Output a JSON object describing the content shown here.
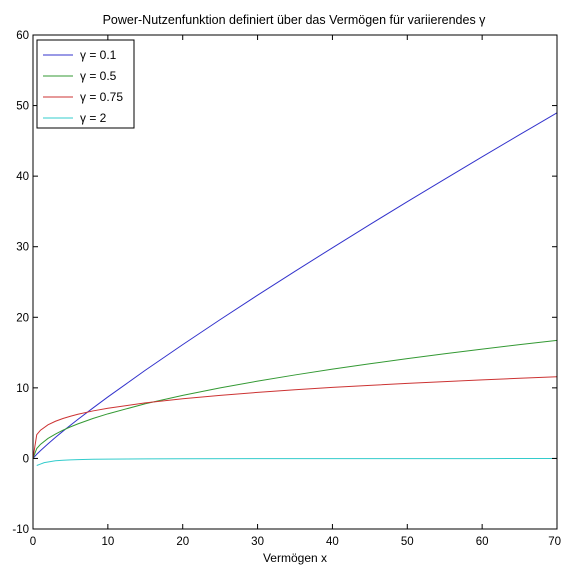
{
  "chart_data": {
    "type": "line",
    "title": "Power-Nutzenfunktion definiert über das Vermögen für variierendes γ",
    "xlabel": "Vermögen x",
    "ylabel": "",
    "xlim": [
      0,
      70
    ],
    "ylim": [
      -10,
      60
    ],
    "xticks": [
      0,
      10,
      20,
      30,
      40,
      50,
      60,
      70
    ],
    "yticks": [
      -10,
      0,
      10,
      20,
      30,
      40,
      50,
      60
    ],
    "grid": false,
    "legend_position": "top-left",
    "series": [
      {
        "name": "γ = 0.1",
        "color": "#3333cc",
        "x": [
          0,
          0.5,
          1,
          2,
          3,
          4,
          5,
          6,
          8,
          10,
          15,
          20,
          25,
          30,
          35,
          40,
          45,
          50,
          55,
          60,
          65,
          70
        ],
        "y": [
          0,
          0.59,
          1.11,
          2.07,
          2.98,
          3.86,
          4.7,
          5.53,
          7.14,
          8.71,
          12.49,
          16.13,
          19.67,
          23.13,
          26.52,
          29.85,
          33.14,
          36.38,
          39.57,
          42.74,
          45.87,
          48.97
        ]
      },
      {
        "name": "γ = 0.5",
        "color": "#339933",
        "x": [
          0,
          0.5,
          1,
          2,
          3,
          4,
          5,
          6,
          8,
          10,
          15,
          20,
          25,
          30,
          35,
          40,
          45,
          50,
          55,
          60,
          65,
          70
        ],
        "y": [
          0,
          1.41,
          2,
          2.83,
          3.46,
          4,
          4.47,
          4.9,
          5.66,
          6.32,
          7.75,
          8.94,
          10,
          10.95,
          11.83,
          12.65,
          13.42,
          14.14,
          14.83,
          15.49,
          16.12,
          16.73
        ]
      },
      {
        "name": "γ = 0.75",
        "color": "#cc3333",
        "x": [
          0,
          0.5,
          1,
          2,
          3,
          4,
          5,
          6,
          8,
          10,
          15,
          20,
          25,
          30,
          35,
          40,
          45,
          50,
          55,
          60,
          65,
          70
        ],
        "y": [
          0,
          3.36,
          4,
          4.76,
          5.27,
          5.66,
          5.98,
          6.26,
          6.73,
          7.11,
          7.87,
          8.46,
          8.94,
          9.36,
          9.73,
          10.06,
          10.36,
          10.63,
          10.89,
          11.13,
          11.36,
          11.57
        ]
      },
      {
        "name": "γ = 2",
        "color": "#33cccc",
        "x": [
          0.5,
          1,
          1.5,
          2,
          3,
          4,
          5,
          6,
          8,
          10,
          15,
          20,
          30,
          40,
          50,
          60,
          70
        ],
        "y": [
          -1,
          -0.8,
          -0.6,
          -0.5,
          -0.33,
          -0.25,
          -0.2,
          -0.17,
          -0.12,
          -0.1,
          -0.07,
          -0.05,
          -0.03,
          -0.02,
          -0.02,
          -0.02,
          -0.01
        ]
      }
    ]
  }
}
